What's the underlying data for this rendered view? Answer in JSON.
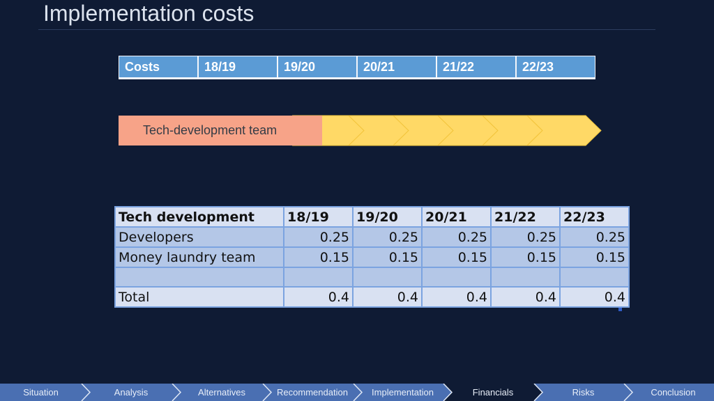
{
  "slide": {
    "title": "Implementation costs"
  },
  "years_header": {
    "cells": [
      "Costs",
      "18/19",
      "19/20",
      "20/21",
      "21/22",
      "22/23"
    ]
  },
  "timeline": {
    "team_label": "Tech-development team"
  },
  "cost_table": {
    "columns": [
      "Tech development",
      "18/19",
      "19/20",
      "20/21",
      "21/22",
      "22/23"
    ],
    "rows": [
      {
        "label": "Developers",
        "values": [
          "0.25",
          "0.25",
          "0.25",
          "0.25",
          "0.25"
        ]
      },
      {
        "label": "Money laundry team",
        "values": [
          "0.15",
          "0.15",
          "0.15",
          "0.15",
          "0.15"
        ]
      },
      {
        "label": "",
        "values": [
          "",
          "",
          "",
          "",
          ""
        ]
      },
      {
        "label": "Total",
        "values": [
          "0.4",
          "0.4",
          "0.4",
          "0.4",
          "0.4"
        ]
      }
    ]
  },
  "nav": {
    "items": [
      "Situation",
      "Analysis",
      "Alternatives",
      "Recommendation",
      "Implementation",
      "Financials",
      "Risks",
      "Conclusion"
    ],
    "active": "Financials"
  },
  "colors": {
    "background": "#0f1b34",
    "header_blue": "#5b9bd5",
    "team_orange": "#f7a388",
    "chevron_yellow": "#ffd966",
    "table_fill": "#b4c7e7",
    "nav_blue": "#4a6fb2"
  }
}
